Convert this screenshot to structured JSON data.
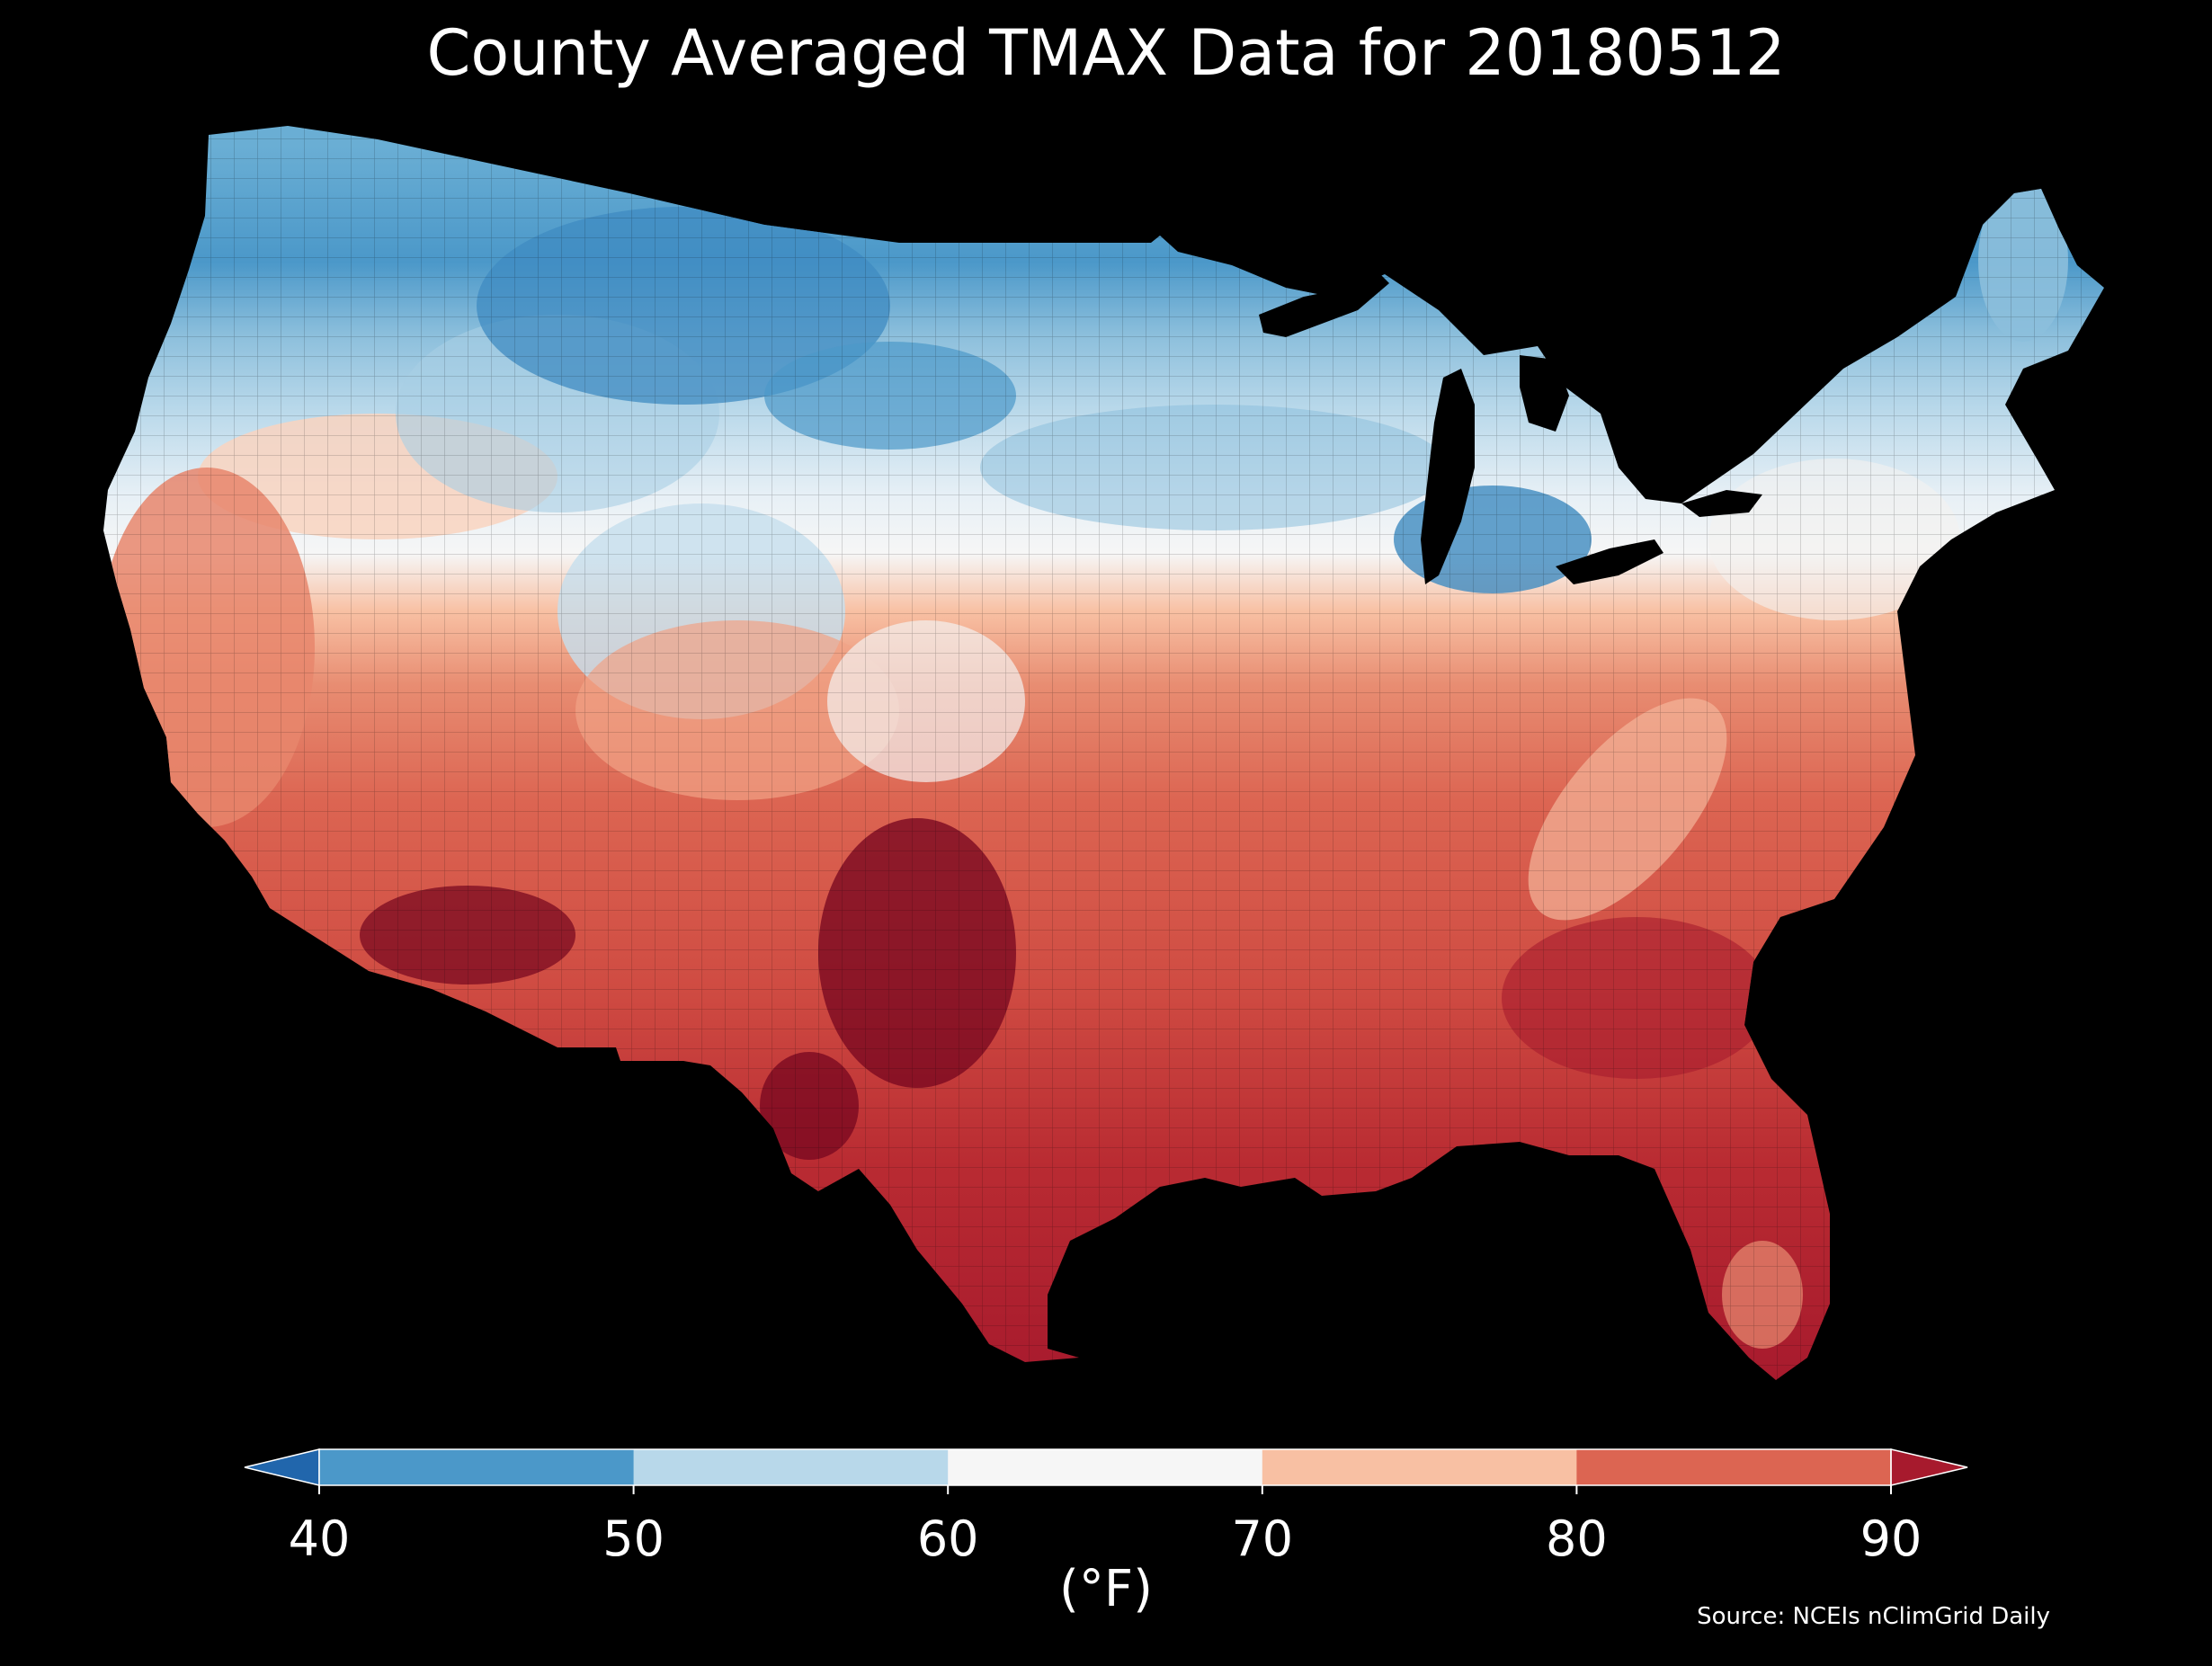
{
  "title": "County Averaged TMAX Data for 20180512",
  "units_label": "(°F)",
  "source": "Source: NCEIs nClimGrid Daily",
  "colorbar": {
    "ticks": [
      "40",
      "50",
      "60",
      "70",
      "80",
      "90"
    ],
    "bins": [
      {
        "range": "<40",
        "color": "#2166ac"
      },
      {
        "range": "40-50",
        "color": "#4b98c9"
      },
      {
        "range": "50-60",
        "color": "#b8d8ea"
      },
      {
        "range": "60-70",
        "color": "#f6f6f6"
      },
      {
        "range": "70-80",
        "color": "#f8c0a3"
      },
      {
        "range": "80-90",
        "color": "#dc6552"
      },
      {
        "range": ">90",
        "color": "#a71a2d"
      }
    ],
    "extend": "both"
  },
  "map": {
    "region": "Contiguous United States",
    "variable": "TMAX",
    "date": "20180512",
    "background": "#000000"
  }
}
